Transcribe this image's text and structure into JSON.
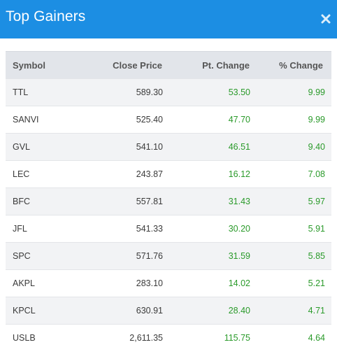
{
  "modal": {
    "title": "Top Gainers",
    "close_icon": "close-icon",
    "header_color": "#1c8ee3"
  },
  "table": {
    "columns": [
      "Symbol",
      "Close Price",
      "Pt. Change",
      "% Change"
    ],
    "positive_color": "#2a9a2a",
    "rows": [
      {
        "symbol": "TTL",
        "close": "589.30",
        "pt_change": "53.50",
        "pct_change": "9.99"
      },
      {
        "symbol": "SANVI",
        "close": "525.40",
        "pt_change": "47.70",
        "pct_change": "9.99"
      },
      {
        "symbol": "GVL",
        "close": "541.10",
        "pt_change": "46.51",
        "pct_change": "9.40"
      },
      {
        "symbol": "LEC",
        "close": "243.87",
        "pt_change": "16.12",
        "pct_change": "7.08"
      },
      {
        "symbol": "BFC",
        "close": "557.81",
        "pt_change": "31.43",
        "pct_change": "5.97"
      },
      {
        "symbol": "JFL",
        "close": "541.33",
        "pt_change": "30.20",
        "pct_change": "5.91"
      },
      {
        "symbol": "SPC",
        "close": "571.76",
        "pt_change": "31.59",
        "pct_change": "5.85"
      },
      {
        "symbol": "AKPL",
        "close": "283.10",
        "pt_change": "14.02",
        "pct_change": "5.21"
      },
      {
        "symbol": "KPCL",
        "close": "630.91",
        "pt_change": "28.40",
        "pct_change": "4.71"
      },
      {
        "symbol": "USLB",
        "close": "2,611.35",
        "pt_change": "115.75",
        "pct_change": "4.64"
      }
    ]
  }
}
